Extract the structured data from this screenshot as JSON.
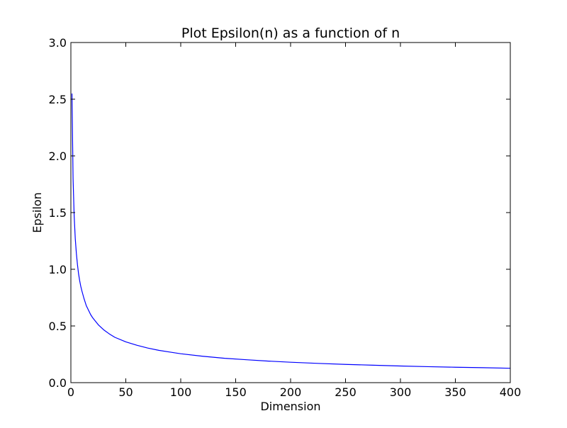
{
  "chart_data": {
    "type": "line",
    "title": "Plot Epsilon(n) as a function of n",
    "xlabel": "Dimension",
    "ylabel": "Epsilon",
    "xlim": [
      0,
      400
    ],
    "ylim": [
      0.0,
      3.0
    ],
    "xticks": [
      0,
      50,
      100,
      150,
      200,
      250,
      300,
      350,
      400
    ],
    "xtick_labels": [
      "0",
      "50",
      "100",
      "150",
      "200",
      "250",
      "300",
      "350",
      "400"
    ],
    "yticks": [
      0.0,
      0.5,
      1.0,
      1.5,
      2.0,
      2.5,
      3.0
    ],
    "ytick_labels": [
      "0.0",
      "0.5",
      "1.0",
      "1.5",
      "2.0",
      "2.5",
      "3.0"
    ],
    "grid": false,
    "series": [
      {
        "color": "#0000ff",
        "x": [
          1,
          2,
          3,
          4,
          5,
          6,
          7,
          8,
          9,
          10,
          12,
          14,
          16,
          18,
          20,
          25,
          30,
          35,
          40,
          50,
          60,
          70,
          80,
          90,
          100,
          120,
          140,
          160,
          180,
          200,
          225,
          250,
          275,
          300,
          325,
          350,
          375,
          400
        ],
        "y": [
          2.55,
          1.8,
          1.47,
          1.27,
          1.14,
          1.04,
          0.96,
          0.9,
          0.85,
          0.81,
          0.74,
          0.68,
          0.64,
          0.6,
          0.57,
          0.51,
          0.465,
          0.43,
          0.4,
          0.36,
          0.33,
          0.305,
          0.285,
          0.27,
          0.255,
          0.233,
          0.215,
          0.202,
          0.19,
          0.18,
          0.17,
          0.161,
          0.154,
          0.147,
          0.141,
          0.136,
          0.132,
          0.127
        ]
      }
    ]
  }
}
